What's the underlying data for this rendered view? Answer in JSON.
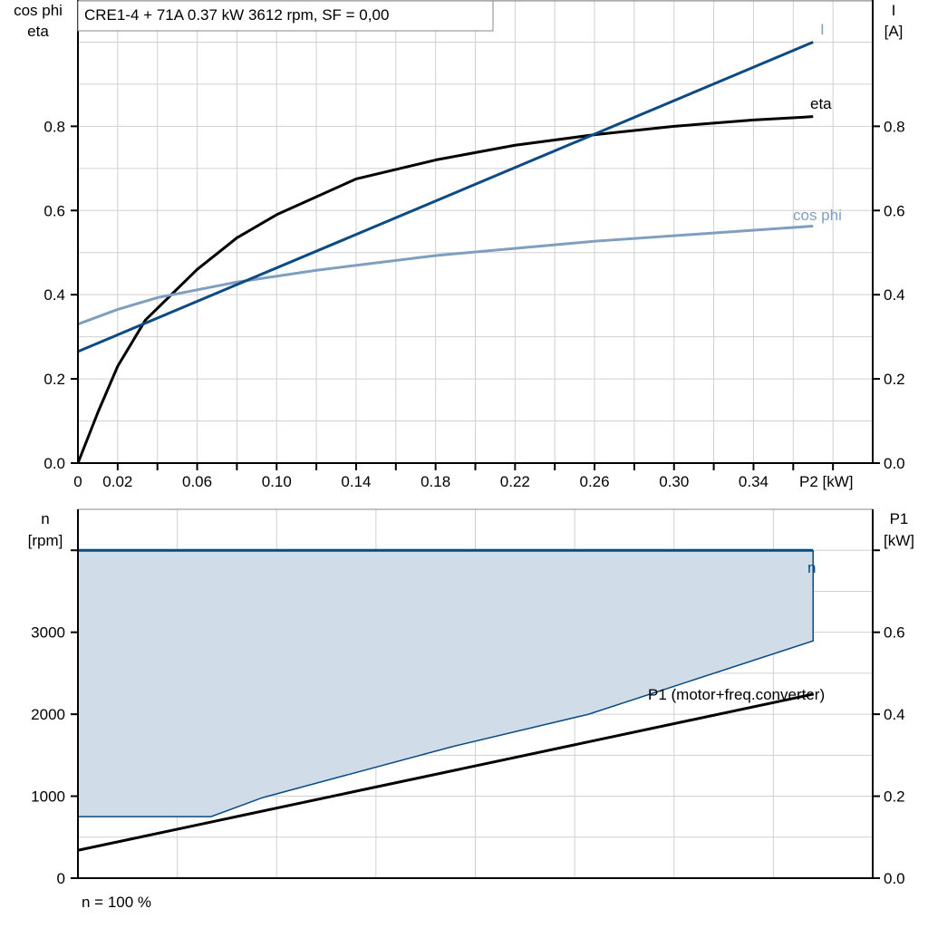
{
  "chart_data": [
    {
      "type": "line",
      "title": "CRE1-4 + 71A   0.37 kW   3612 rpm, SF = 0,00",
      "xlabel": "P2 [kW]",
      "ylabel_left": [
        "cos phi",
        "eta"
      ],
      "ylabel_right": [
        "I",
        "[A]"
      ],
      "xlim": [
        0,
        0.4
      ],
      "ylim": [
        0,
        1.1
      ],
      "x_tick_labels": [
        "0",
        "0.02",
        "0.06",
        "0.10",
        "0.14",
        "0.18",
        "0.22",
        "0.26",
        "0.30",
        "0.34"
      ],
      "y_tick_labels": [
        "0.0",
        "0.2",
        "0.4",
        "0.6",
        "0.8"
      ],
      "grid": true,
      "series": [
        {
          "name": "eta",
          "color": "#000000",
          "x": [
            0,
            0.005,
            0.01,
            0.02,
            0.034,
            0.06,
            0.08,
            0.1,
            0.14,
            0.18,
            0.22,
            0.26,
            0.3,
            0.34,
            0.37
          ],
          "y": [
            0,
            0.06,
            0.12,
            0.23,
            0.34,
            0.46,
            0.535,
            0.59,
            0.675,
            0.72,
            0.755,
            0.78,
            0.8,
            0.815,
            0.823
          ]
        },
        {
          "name": "cos phi",
          "color": "#7f9fbf",
          "x": [
            0,
            0.02,
            0.04,
            0.08,
            0.12,
            0.18,
            0.26,
            0.37
          ],
          "y": [
            0.33,
            0.365,
            0.393,
            0.43,
            0.458,
            0.493,
            0.527,
            0.563
          ]
        },
        {
          "name": "I",
          "color": "#0b4a82",
          "x": [
            0,
            0.37
          ],
          "y": [
            0.265,
            1.0
          ]
        }
      ]
    },
    {
      "type": "line",
      "xlim": [
        0,
        0.4
      ],
      "ylabel_left": [
        "n",
        "[rpm]"
      ],
      "ylabel_right": [
        "P1",
        "[kW]"
      ],
      "ylim": [
        0,
        4500
      ],
      "ylim_right": [
        0,
        0.9
      ],
      "y_tick_labels": [
        "0",
        "1000",
        "2000",
        "3000"
      ],
      "y_right_tick_labels": [
        "0.0",
        "0.2",
        "0.4",
        "0.6"
      ],
      "grid": true,
      "footnote": "n = 100 %",
      "series": [
        {
          "name": "n",
          "color": "#0b4a82",
          "x": [
            0,
            0.37
          ],
          "y": [
            4000,
            4000
          ]
        },
        {
          "name": "P1 (motor+freq.converter)",
          "color": "#000000",
          "x": [
            0,
            0.37
          ],
          "y_right": [
            0.068,
            0.449
          ]
        }
      ],
      "area": {
        "fill": "#d0dce8",
        "edge": "#0b4a82",
        "upper_x": [
          0,
          0.37
        ],
        "upper_y": [
          4000,
          4000
        ],
        "lower_x": [
          0,
          0.067,
          0.093,
          0.188,
          0.257,
          0.37
        ],
        "lower_y": [
          751,
          751,
          983,
          1602,
          2000,
          2895
        ]
      }
    }
  ]
}
